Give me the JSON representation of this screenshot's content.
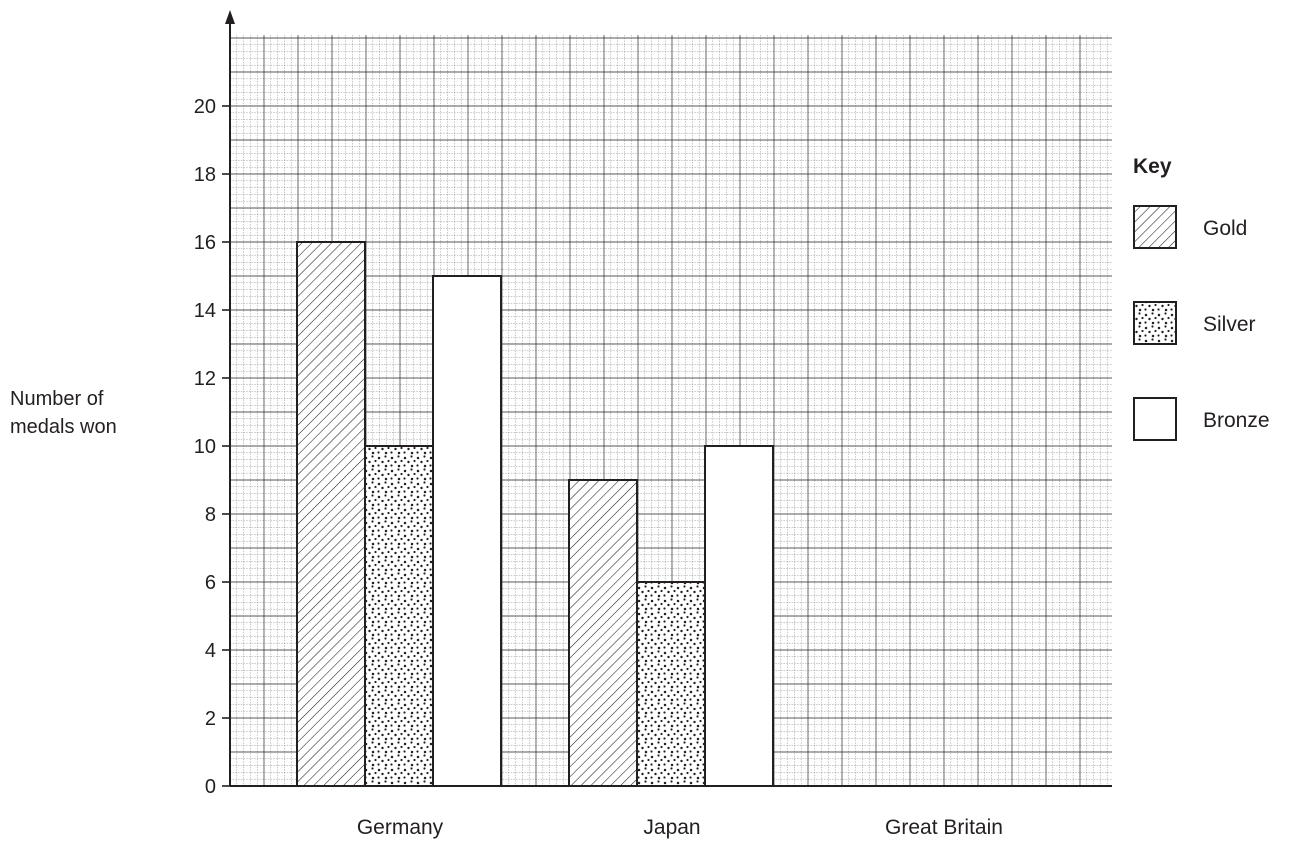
{
  "chart_data": {
    "type": "bar",
    "title": "",
    "xlabel": "",
    "ylabel": [
      "Number of",
      "medals won"
    ],
    "categories": [
      "Germany",
      "Japan",
      "Great Britain"
    ],
    "series": [
      {
        "name": "Gold",
        "values": [
          16,
          9,
          null
        ],
        "pattern": "diagonal-hatch"
      },
      {
        "name": "Silver",
        "values": [
          10,
          6,
          null
        ],
        "pattern": "dots"
      },
      {
        "name": "Bronze",
        "values": [
          15,
          10,
          null
        ],
        "pattern": "plain"
      }
    ],
    "ylim": [
      0,
      20
    ],
    "yticks": [
      0,
      2,
      4,
      6,
      8,
      10,
      12,
      14,
      16,
      18,
      20
    ],
    "grid": true,
    "legend": {
      "title": "Key",
      "position": "right"
    },
    "colors": {
      "ink": "#231f20",
      "grid": "#231f20",
      "background": "#ffffff"
    }
  }
}
